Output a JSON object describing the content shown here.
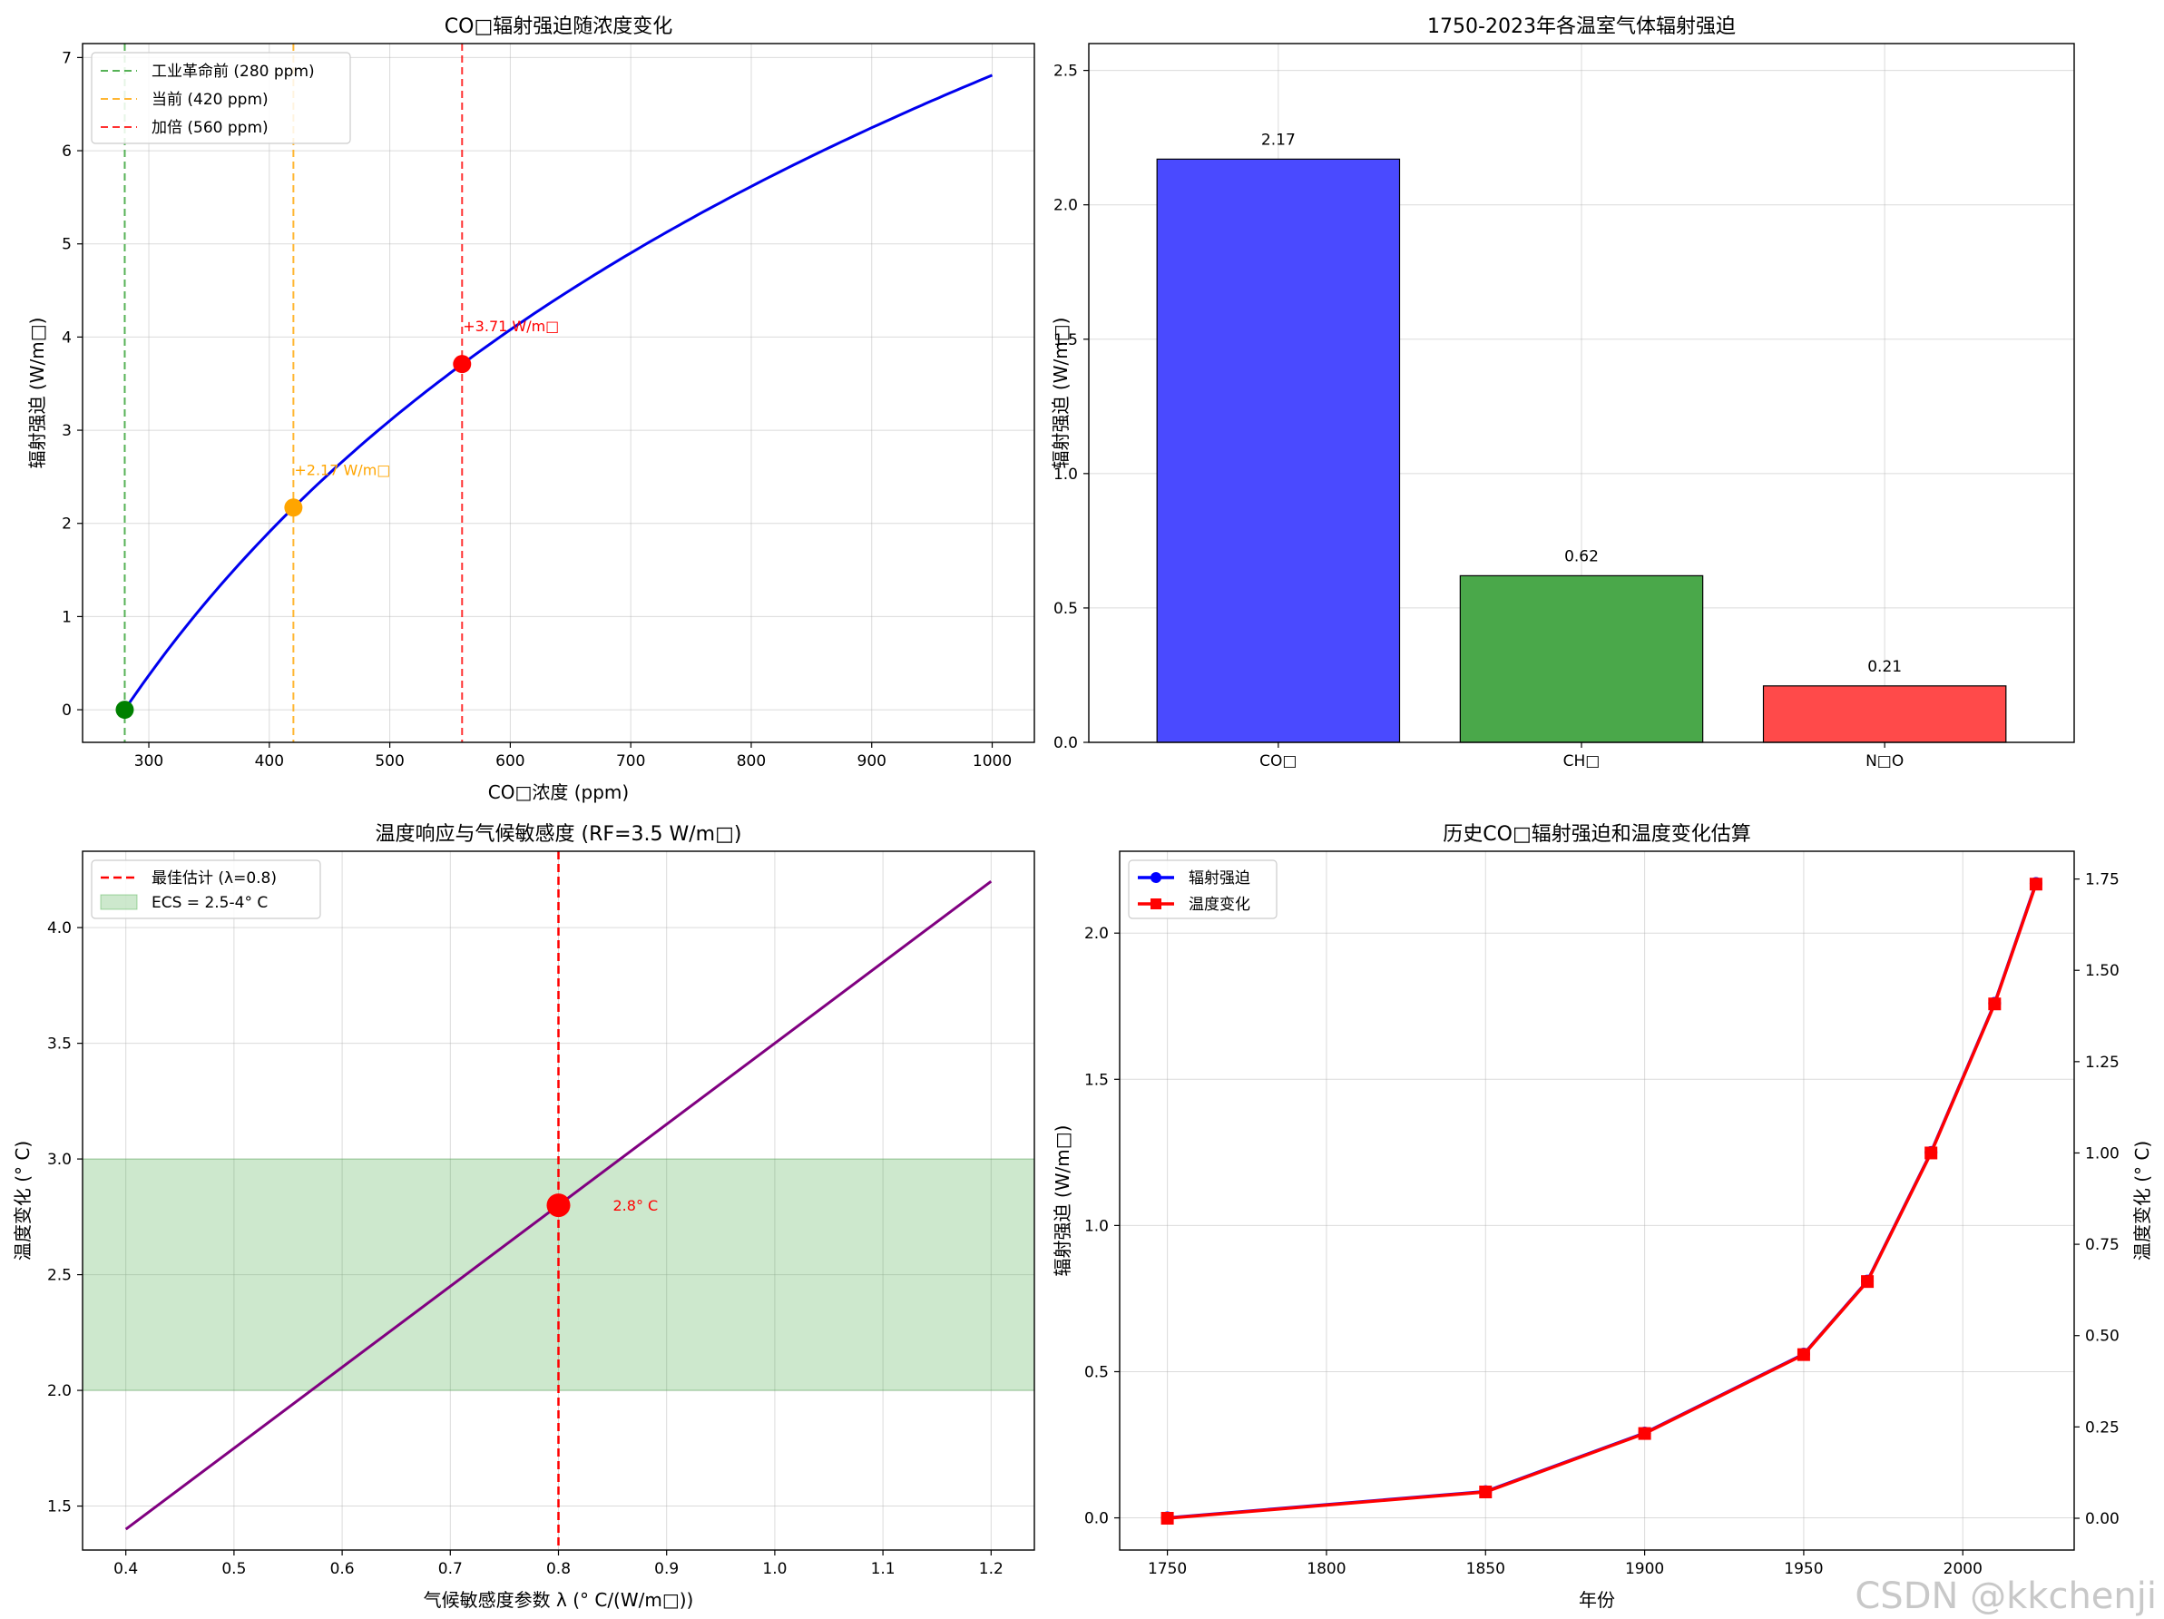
{
  "chart_data": [
    {
      "type": "line",
      "title": "CO□辐射强迫随浓度变化",
      "xlabel": "CO□浓度 (ppm)",
      "ylabel": "辐射强迫 (W/m□)",
      "xlim": [
        245,
        1035
      ],
      "ylim": [
        -0.35,
        7.15
      ],
      "xticks": [
        300,
        400,
        500,
        600,
        700,
        800,
        900,
        1000
      ],
      "yticks": [
        0,
        1,
        2,
        3,
        4,
        5,
        6,
        7
      ],
      "grid": true,
      "legend_position": "upper-left",
      "curve": {
        "formula": "5.35*ln(C/280)",
        "x_range": [
          280,
          1000
        ],
        "color": "#0000ee"
      },
      "vlines": [
        {
          "x": 280,
          "label": "工业革命前 (280 ppm)",
          "color": "#2ca02c"
        },
        {
          "x": 420,
          "label": "当前 (420 ppm)",
          "color": "#ffa500"
        },
        {
          "x": 560,
          "label": "加倍 (560 ppm)",
          "color": "#ff0000"
        }
      ],
      "points": [
        {
          "x": 280,
          "y": 0,
          "color": "#008000"
        },
        {
          "x": 420,
          "y": 2.17,
          "color": "#ffa500",
          "label": "+2.17 W/m□"
        },
        {
          "x": 560,
          "y": 3.71,
          "color": "#ff0000",
          "label": "+3.71 W/m□"
        }
      ]
    },
    {
      "type": "bar",
      "title": "1750-2023年各温室气体辐射强迫",
      "xlabel": "",
      "ylabel": "辐射强迫 (W/m□)",
      "categories": [
        "CO□",
        "CH□",
        "N□O"
      ],
      "values": [
        2.17,
        0.62,
        0.21
      ],
      "value_labels": [
        "2.17",
        "0.62",
        "0.21"
      ],
      "colors": [
        "#4a4aff",
        "#4aa84a",
        "#ff4a4a"
      ],
      "ylim": [
        0,
        2.6
      ],
      "yticks": [
        0.0,
        0.5,
        1.0,
        1.5,
        2.0,
        2.5
      ],
      "grid": true
    },
    {
      "type": "line",
      "title": "温度响应与气候敏感度 (RF=3.5 W/m□)",
      "xlabel": "气候敏感度参数 λ (° C/(W/m□))",
      "ylabel": "温度变化 (° C)",
      "xlim": [
        0.36,
        1.24
      ],
      "ylim": [
        1.31,
        4.33
      ],
      "xticks": [
        0.4,
        0.5,
        0.6,
        0.7,
        0.8,
        0.9,
        1.0,
        1.1,
        1.2
      ],
      "yticks": [
        1.5,
        2.0,
        2.5,
        3.0,
        3.5,
        4.0
      ],
      "grid": true,
      "legend_position": "upper-left",
      "series": [
        {
          "x": [
            0.4,
            1.2
          ],
          "values": [
            1.4,
            4.2
          ],
          "color": "#800080"
        }
      ],
      "band": {
        "y": [
          2.0,
          3.0
        ],
        "label": "ECS = 2.5-4° C",
        "color": "#2ca02c"
      },
      "vline": {
        "x": 0.8,
        "label": "最佳估计 (λ=0.8)",
        "color": "#ff0000"
      },
      "point": {
        "x": 0.8,
        "y": 2.8,
        "label": "2.8° C",
        "color": "#ff0000"
      }
    },
    {
      "type": "line",
      "title": "历史CO□辐射强迫和温度变化估算",
      "xlabel": "年份",
      "ylabel": "辐射强迫 (W/m□)",
      "ylabel_right": "温度变化 (° C)",
      "xlim": [
        1735,
        2035
      ],
      "ylim": [
        -0.11,
        2.28
      ],
      "ylim_right": [
        -0.087,
        1.826
      ],
      "xticks": [
        1750,
        1800,
        1850,
        1900,
        1950,
        2000
      ],
      "yticks": [
        0.0,
        0.5,
        1.0,
        1.5,
        2.0
      ],
      "yticks_right": [
        "0.00",
        "0.25",
        "0.50",
        "0.75",
        "1.00",
        "1.25",
        "1.50",
        "1.75"
      ],
      "grid": true,
      "legend_position": "upper-left",
      "x": [
        1750,
        1850,
        1900,
        1950,
        1970,
        1990,
        2010,
        2023
      ],
      "series": [
        {
          "name": "辐射强迫",
          "values": [
            0,
            0.09,
            0.29,
            0.56,
            0.81,
            1.25,
            1.76,
            2.17
          ],
          "color": "#0000ff",
          "axis": "left"
        },
        {
          "name": "温度变化",
          "values": [
            0,
            0.072,
            0.232,
            0.448,
            0.648,
            1.0,
            1.408,
            1.736
          ],
          "color": "#ff0000",
          "axis": "right"
        }
      ]
    }
  ],
  "watermark": "CSDN @kkchenji"
}
